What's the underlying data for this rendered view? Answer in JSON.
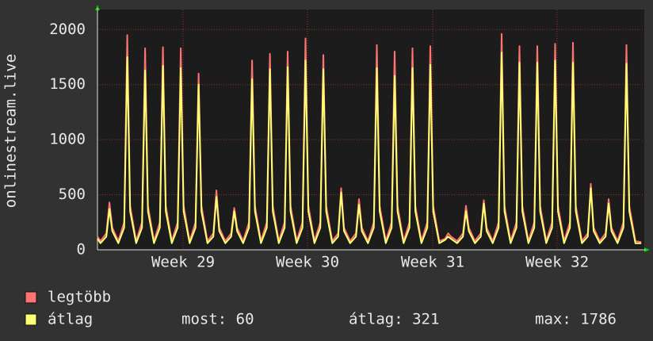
{
  "chart_data": {
    "type": "line",
    "ylabel": "onlinestream.live",
    "x": [
      0,
      0.17,
      0.5,
      0.67,
      0.83,
      1.17,
      1.5,
      1.67,
      1.83,
      2.17,
      2.5,
      2.67,
      2.83,
      3.17,
      3.5,
      3.67,
      3.83,
      4.17,
      4.5,
      4.67,
      4.83,
      5.17,
      5.5,
      5.67,
      5.83,
      6.17,
      6.5,
      6.67,
      6.83,
      7.17,
      7.5,
      7.67,
      7.83,
      8.17,
      8.5,
      8.67,
      8.83,
      9.17,
      9.5,
      9.67,
      9.83,
      10.17,
      10.5,
      10.67,
      10.83,
      11.17,
      11.5,
      11.67,
      11.83,
      12.17,
      12.5,
      12.67,
      12.83,
      13.17,
      13.5,
      13.67,
      13.83,
      14.17,
      14.5,
      14.67,
      14.83,
      15.17,
      15.5,
      15.67,
      15.83,
      16.17,
      16.5,
      16.67,
      16.83,
      17.17,
      17.5,
      17.67,
      17.83,
      18.17,
      18.5,
      18.67,
      18.83,
      19.17,
      19.5,
      19.67,
      19.83,
      20.17,
      20.5,
      20.67,
      20.83,
      21.17,
      21.5,
      21.67,
      21.83,
      22.17,
      22.5,
      22.67,
      22.83,
      23.17,
      23.5,
      23.67,
      23.83,
      24.17,
      24.5,
      24.67,
      24.83,
      25.17,
      25.5,
      25.67,
      25.83,
      26.17,
      26.5,
      26.67,
      26.83,
      27.17,
      27.5,
      27.67,
      27.83,
      28.17,
      28.5,
      28.67,
      28.83,
      29.17,
      29.5,
      29.67,
      29.83,
      30.17,
      30.5
    ],
    "series": [
      {
        "name": "legtöbb",
        "color": "#ff7373",
        "values": [
          120,
          80,
          150,
          430,
          200,
          80,
          250,
          1950,
          400,
          80,
          250,
          1830,
          400,
          80,
          250,
          1840,
          400,
          80,
          250,
          1830,
          400,
          80,
          250,
          1600,
          400,
          80,
          150,
          540,
          200,
          80,
          150,
          380,
          200,
          80,
          250,
          1720,
          400,
          80,
          250,
          1780,
          400,
          80,
          250,
          1800,
          400,
          80,
          250,
          1920,
          400,
          80,
          250,
          1770,
          400,
          80,
          150,
          560,
          200,
          80,
          150,
          460,
          200,
          80,
          250,
          1860,
          400,
          80,
          250,
          1800,
          400,
          80,
          250,
          1830,
          400,
          80,
          250,
          1850,
          400,
          80,
          100,
          150,
          120,
          80,
          150,
          400,
          200,
          80,
          150,
          450,
          200,
          80,
          250,
          1960,
          400,
          80,
          250,
          1850,
          400,
          80,
          250,
          1850,
          400,
          80,
          250,
          1870,
          400,
          80,
          250,
          1880,
          400,
          80,
          150,
          600,
          200,
          80,
          150,
          460,
          200,
          80,
          250,
          1860,
          400,
          80,
          70
        ]
      },
      {
        "name": "átlag",
        "color": "#ffff73",
        "values": [
          100,
          60,
          120,
          370,
          170,
          60,
          200,
          1750,
          350,
          60,
          200,
          1630,
          350,
          60,
          200,
          1670,
          350,
          60,
          200,
          1650,
          350,
          60,
          200,
          1500,
          350,
          60,
          120,
          480,
          170,
          60,
          120,
          350,
          170,
          60,
          200,
          1550,
          350,
          60,
          200,
          1640,
          350,
          60,
          200,
          1660,
          350,
          60,
          200,
          1720,
          350,
          60,
          200,
          1640,
          350,
          60,
          120,
          520,
          170,
          60,
          120,
          410,
          170,
          60,
          200,
          1650,
          350,
          60,
          200,
          1580,
          350,
          60,
          200,
          1650,
          350,
          60,
          200,
          1680,
          350,
          60,
          90,
          120,
          100,
          60,
          120,
          350,
          170,
          60,
          120,
          420,
          170,
          60,
          200,
          1790,
          350,
          60,
          200,
          1700,
          350,
          60,
          200,
          1700,
          350,
          60,
          200,
          1720,
          350,
          60,
          200,
          1700,
          350,
          60,
          120,
          560,
          170,
          60,
          120,
          420,
          170,
          60,
          200,
          1690,
          350,
          60,
          60
        ]
      }
    ],
    "xlim": [
      0,
      30.67
    ],
    "xticks": [
      {
        "value": 4.8,
        "label": "Week 29"
      },
      {
        "value": 11.78,
        "label": "Week 30"
      },
      {
        "value": 18.8,
        "label": "Week 31"
      },
      {
        "value": 25.78,
        "label": "Week 32"
      }
    ],
    "ylim": [
      0,
      2110
    ],
    "yticks": [
      0,
      500,
      1000,
      1500,
      2000
    ],
    "grid": true,
    "stats": [
      "most: 60",
      "átlag: 321",
      "max: 1786"
    ]
  }
}
